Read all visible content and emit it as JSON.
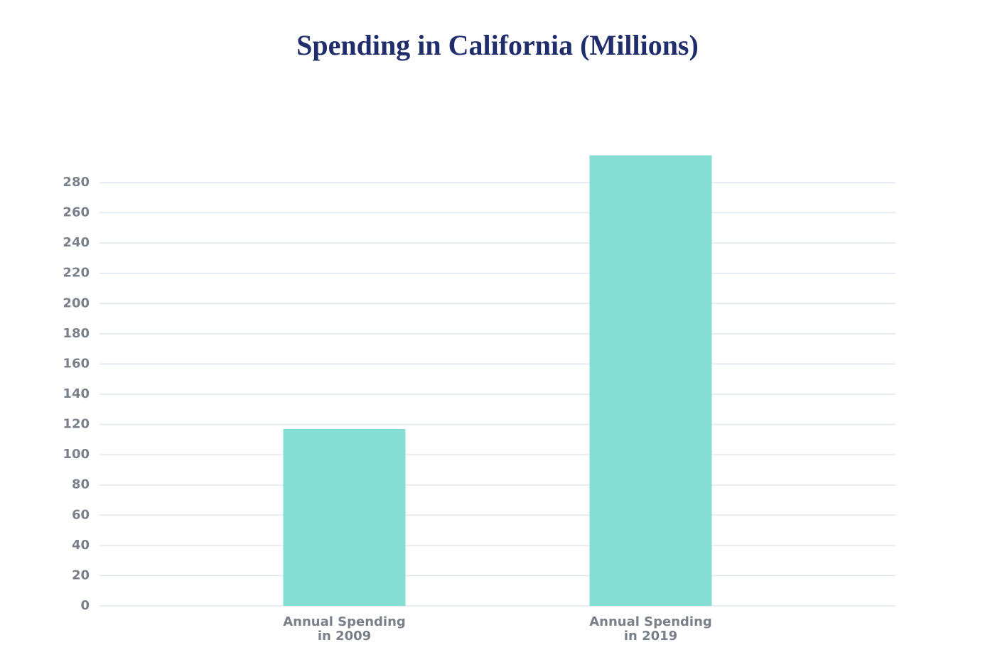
{
  "chart_data": {
    "type": "bar",
    "title": "Spending in California (Millions)",
    "categories": [
      "Annual Spending\nin 2009",
      "Annual Spending\nin 2019"
    ],
    "values": [
      117,
      298
    ],
    "color": "#86ddd4",
    "ylim": [
      0,
      300
    ],
    "yticks": [
      0,
      20,
      40,
      60,
      80,
      100,
      120,
      140,
      160,
      180,
      200,
      220,
      240,
      260,
      280
    ],
    "grid": true
  }
}
